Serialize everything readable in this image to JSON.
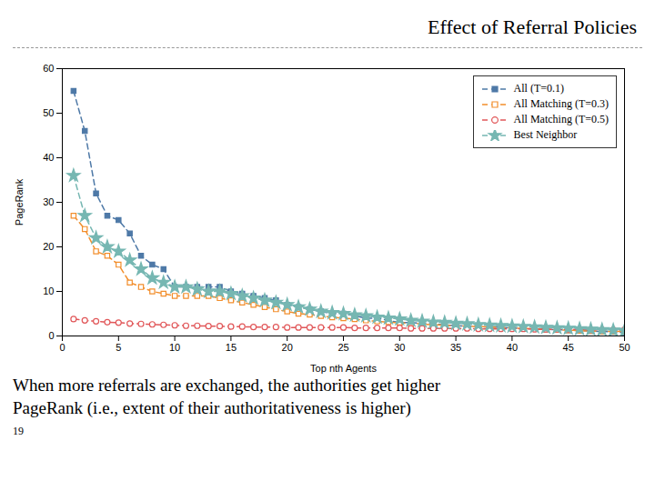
{
  "chart_data": {
    "type": "line",
    "title": "Effect of Referral Policies",
    "subtitle": [
      "When more referrals are exchanged, the authorities get higher",
      "PageRank (i.e., extent of their authoritativeness is higher)"
    ],
    "annotations": [
      "19"
    ],
    "xlabel": "Top nth Agents",
    "ylabel": "PageRank",
    "xlim": [
      0,
      50
    ],
    "ylim": [
      0,
      60
    ],
    "xticks": [
      0,
      5,
      10,
      15,
      20,
      25,
      30,
      35,
      40,
      45,
      50
    ],
    "yticks": [
      0,
      10,
      20,
      30,
      40,
      50,
      60
    ],
    "grid": false,
    "legend": "upper right",
    "x": [
      1,
      2,
      3,
      4,
      5,
      6,
      7,
      8,
      9,
      10,
      11,
      12,
      13,
      14,
      15,
      16,
      17,
      18,
      19,
      20,
      21,
      22,
      23,
      24,
      25,
      26,
      27,
      28,
      29,
      30,
      31,
      32,
      33,
      34,
      35,
      36,
      37,
      38,
      39,
      40,
      41,
      42,
      43,
      44,
      45,
      46,
      47,
      48,
      49,
      50
    ],
    "series": [
      {
        "name": "All (T=0.1)",
        "marker": "square",
        "line_style": "dashed",
        "values": [
          55,
          46,
          32,
          27,
          26,
          23,
          18,
          16,
          15,
          11,
          11,
          11,
          11,
          11,
          10,
          9.5,
          9,
          8.5,
          8,
          7,
          6.5,
          6,
          5.5,
          5,
          5,
          4.5,
          4,
          4,
          3.5,
          3,
          3,
          2.8,
          2.7,
          2.5,
          2.3,
          2.2,
          2.1,
          2,
          1.9,
          1.8,
          1.7,
          1.6,
          1.5,
          1.4,
          1.3,
          1.2,
          1.1,
          1.0,
          0.9,
          0.8
        ]
      },
      {
        "name": "All Matching (T=0.3)",
        "marker": "square-open",
        "line_style": "dashed",
        "values": [
          27,
          24,
          19,
          18,
          16,
          12,
          11,
          10,
          9.5,
          9,
          9,
          9,
          9,
          8.5,
          8,
          7.5,
          7,
          6.5,
          6,
          5.5,
          5,
          4.8,
          4.5,
          4.2,
          4,
          3.8,
          3.5,
          3.3,
          3.1,
          3,
          2.8,
          2.7,
          2.5,
          2.4,
          2.3,
          2.2,
          2.1,
          2.0,
          1.9,
          1.8,
          1.7,
          1.6,
          1.5,
          1.4,
          1.3,
          1.2,
          1.1,
          1.0,
          1.0,
          1.0
        ]
      },
      {
        "name": "All Matching (T=0.5)",
        "marker": "circle-open",
        "line_style": "dashed",
        "values": [
          3.8,
          3.5,
          3.3,
          3.1,
          3.0,
          2.8,
          2.7,
          2.6,
          2.5,
          2.4,
          2.3,
          2.3,
          2.2,
          2.2,
          2.1,
          2.1,
          2.0,
          2.0,
          2.0,
          1.9,
          1.9,
          1.9,
          1.9,
          1.9,
          1.9,
          1.8,
          1.8,
          1.8,
          1.8,
          1.8,
          1.7,
          1.7,
          1.7,
          1.7,
          1.7,
          1.7,
          1.6,
          1.6,
          1.6,
          1.6,
          1.6,
          1.5,
          1.5,
          1.5,
          1.5,
          1.5,
          1.4,
          1.4,
          1.4,
          1.4
        ]
      },
      {
        "name": "Best Neighbor",
        "marker": "star",
        "line_style": "dashed",
        "values": [
          36,
          27,
          22,
          20,
          19,
          17,
          15,
          13,
          12,
          11,
          11,
          10.5,
          10,
          10,
          9.5,
          9,
          8.5,
          8,
          7.5,
          7,
          6.5,
          6,
          5.5,
          5.2,
          5,
          4.7,
          4.5,
          4.2,
          4.0,
          3.8,
          3.5,
          3.3,
          3.1,
          3.0,
          2.8,
          2.7,
          2.5,
          2.4,
          2.3,
          2.2,
          2.1,
          2.0,
          1.9,
          1.8,
          1.7,
          1.6,
          1.5,
          1.4,
          1.3,
          1.2
        ]
      }
    ]
  }
}
